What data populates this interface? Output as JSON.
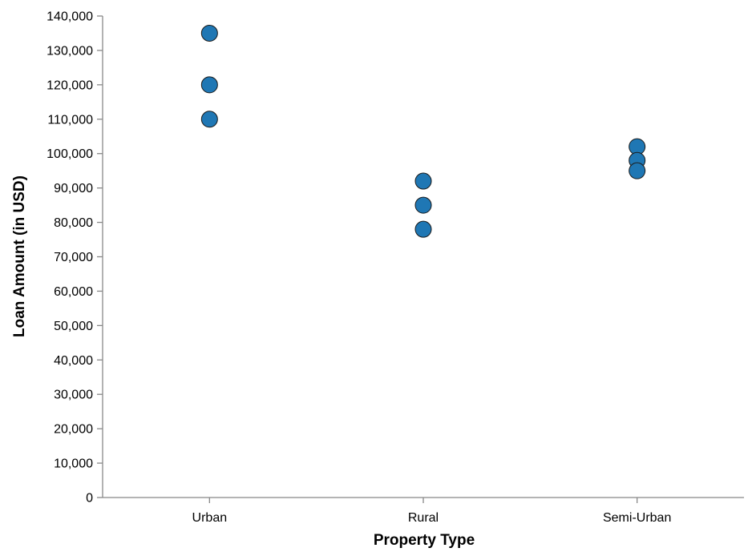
{
  "chart_data": {
    "type": "scatter",
    "title": "",
    "xlabel": "Property Type",
    "ylabel": "Loan Amount (in USD)",
    "categories": [
      "Urban",
      "Rural",
      "Semi-Urban"
    ],
    "ylim": [
      0,
      140000
    ],
    "y_tick_step": 10000,
    "grid": false,
    "legend": "none",
    "point_color": "#1f77b4",
    "points": [
      {
        "x": "Urban",
        "y": 135000
      },
      {
        "x": "Urban",
        "y": 120000
      },
      {
        "x": "Urban",
        "y": 110000
      },
      {
        "x": "Rural",
        "y": 92000
      },
      {
        "x": "Rural",
        "y": 85000
      },
      {
        "x": "Rural",
        "y": 78000
      },
      {
        "x": "Semi-Urban",
        "y": 102000
      },
      {
        "x": "Semi-Urban",
        "y": 98000
      },
      {
        "x": "Semi-Urban",
        "y": 95000
      }
    ]
  }
}
